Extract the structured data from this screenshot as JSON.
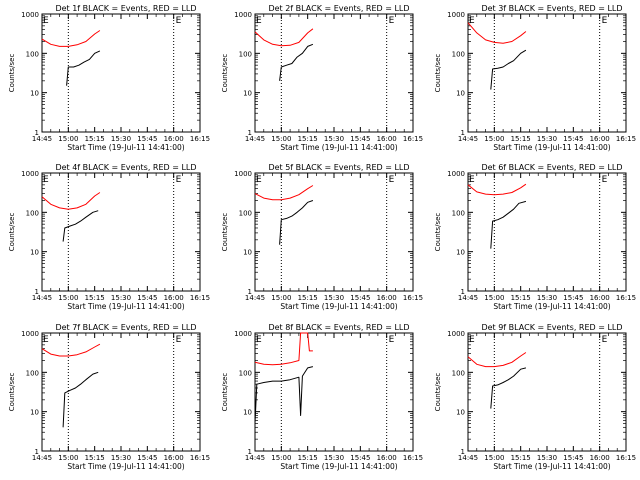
{
  "chart_data": [
    {
      "type": "line",
      "title": "Det 1f BLACK = Events, RED = LLD",
      "xlabel": "Start Time (19-Jul-11 14:41:00)",
      "ylabel": "Counts/sec",
      "xticks": [
        "14:45",
        "15:00",
        "15:15",
        "15:30",
        "15:45",
        "16:00",
        "16:15"
      ],
      "yticks": [
        "1",
        "10",
        "100",
        "1000"
      ],
      "ylim": [
        1,
        1000
      ],
      "yscale": "log",
      "markers": [
        {
          "x": "15:00",
          "style": "dotted"
        },
        {
          "x": "16:00",
          "style": "dotted"
        },
        {
          "x": "16:00",
          "label": "E"
        },
        {
          "x": "14:45",
          "label": "E"
        }
      ],
      "series": [
        {
          "name": "Events",
          "color": "#000000",
          "x": [
            "14:59",
            "15:00",
            "15:03",
            "15:06",
            "15:09",
            "15:12",
            "15:15",
            "15:18"
          ],
          "values": [
            15,
            45,
            45,
            50,
            60,
            70,
            100,
            115
          ]
        },
        {
          "name": "LLD",
          "color": "#ff0000",
          "x": [
            "14:45",
            "14:50",
            "14:55",
            "15:00",
            "15:05",
            "15:10",
            "15:15",
            "15:18"
          ],
          "values": [
            230,
            170,
            150,
            150,
            165,
            200,
            310,
            380
          ]
        }
      ]
    },
    {
      "type": "line",
      "title": "Det 2f BLACK = Events, RED = LLD",
      "xlabel": "Start Time (19-Jul-11 14:41:00)",
      "ylabel": "Counts/sec",
      "xticks": [
        "14:45",
        "15:00",
        "15:15",
        "15:30",
        "15:45",
        "16:00",
        "16:15"
      ],
      "yticks": [
        "1",
        "10",
        "100",
        "1000"
      ],
      "ylim": [
        1,
        1000
      ],
      "yscale": "log",
      "markers": [
        {
          "x": "15:00",
          "style": "dotted"
        },
        {
          "x": "16:00",
          "style": "dotted"
        },
        {
          "x": "16:00",
          "label": "E"
        },
        {
          "x": "14:45",
          "label": "E"
        }
      ],
      "series": [
        {
          "name": "Events",
          "color": "#000000",
          "x": [
            "14:59",
            "15:00",
            "15:03",
            "15:06",
            "15:09",
            "15:12",
            "15:15",
            "15:18"
          ],
          "values": [
            20,
            45,
            50,
            55,
            80,
            100,
            150,
            170
          ]
        },
        {
          "name": "LLD",
          "color": "#ff0000",
          "x": [
            "14:45",
            "14:50",
            "14:55",
            "15:00",
            "15:05",
            "15:10",
            "15:15",
            "15:18"
          ],
          "values": [
            350,
            220,
            170,
            155,
            160,
            190,
            330,
            420
          ]
        }
      ]
    },
    {
      "type": "line",
      "title": "Det 3f BLACK = Events, RED = LLD",
      "xlabel": "Start Time (19-Jul-11 14:41:00)",
      "ylabel": "Counts/sec",
      "xticks": [
        "14:45",
        "15:00",
        "15:15",
        "15:30",
        "15:45",
        "16:00",
        "16:15"
      ],
      "yticks": [
        "1",
        "10",
        "100",
        "1000"
      ],
      "ylim": [
        1,
        1000
      ],
      "yscale": "log",
      "markers": [
        {
          "x": "15:00",
          "style": "dotted"
        },
        {
          "x": "16:00",
          "style": "dotted"
        },
        {
          "x": "16:00",
          "label": "E"
        },
        {
          "x": "14:45",
          "label": "E"
        }
      ],
      "series": [
        {
          "name": "Events",
          "color": "#000000",
          "x": [
            "14:58",
            "14:59",
            "15:02",
            "15:05",
            "15:08",
            "15:11",
            "15:15",
            "15:18"
          ],
          "values": [
            12,
            40,
            42,
            45,
            55,
            65,
            100,
            120
          ]
        },
        {
          "name": "LLD",
          "color": "#ff0000",
          "x": [
            "14:45",
            "14:50",
            "14:55",
            "15:00",
            "15:05",
            "15:10",
            "15:15",
            "15:18"
          ],
          "values": [
            600,
            330,
            220,
            190,
            180,
            200,
            280,
            360
          ]
        }
      ]
    },
    {
      "type": "line",
      "title": "Det 4f BLACK = Events, RED = LLD",
      "xlabel": "Start Time (19-Jul-11 14:41:00)",
      "ylabel": "Counts/sec",
      "xticks": [
        "14:45",
        "15:00",
        "15:15",
        "15:30",
        "15:45",
        "16:00",
        "16:15"
      ],
      "yticks": [
        "1",
        "10",
        "100",
        "1000"
      ],
      "ylim": [
        1,
        1000
      ],
      "yscale": "log",
      "markers": [
        {
          "x": "15:00",
          "style": "dotted"
        },
        {
          "x": "16:00",
          "style": "dotted"
        },
        {
          "x": "16:00",
          "label": "E"
        },
        {
          "x": "14:45",
          "label": "E"
        }
      ],
      "series": [
        {
          "name": "Events",
          "color": "#000000",
          "x": [
            "14:57",
            "14:58",
            "15:01",
            "15:04",
            "15:07",
            "15:10",
            "15:14",
            "15:17"
          ],
          "values": [
            18,
            40,
            45,
            50,
            60,
            75,
            100,
            110
          ]
        },
        {
          "name": "LLD",
          "color": "#ff0000",
          "x": [
            "14:45",
            "14:50",
            "14:55",
            "15:00",
            "15:05",
            "15:10",
            "15:15",
            "15:18"
          ],
          "values": [
            250,
            160,
            130,
            120,
            130,
            160,
            260,
            320
          ]
        }
      ]
    },
    {
      "type": "line",
      "title": "Det 5f BLACK = Events, RED = LLD",
      "xlabel": "Start Time (19-Jul-11 14:41:00)",
      "ylabel": "Counts/sec",
      "xticks": [
        "14:45",
        "15:00",
        "15:15",
        "15:30",
        "15:45",
        "16:00",
        "16:15"
      ],
      "yticks": [
        "1",
        "10",
        "100",
        "1000"
      ],
      "ylim": [
        1,
        1000
      ],
      "yscale": "log",
      "markers": [
        {
          "x": "15:00",
          "style": "dotted"
        },
        {
          "x": "16:00",
          "style": "dotted"
        },
        {
          "x": "16:00",
          "label": "E"
        },
        {
          "x": "14:45",
          "label": "E"
        }
      ],
      "series": [
        {
          "name": "Events",
          "color": "#000000",
          "x": [
            "14:59",
            "15:00",
            "15:03",
            "15:06",
            "15:09",
            "15:12",
            "15:15",
            "15:18"
          ],
          "values": [
            15,
            65,
            70,
            80,
            100,
            130,
            180,
            200
          ]
        },
        {
          "name": "LLD",
          "color": "#ff0000",
          "x": [
            "14:45",
            "14:50",
            "14:55",
            "15:00",
            "15:05",
            "15:10",
            "15:15",
            "15:18"
          ],
          "values": [
            300,
            230,
            210,
            210,
            230,
            280,
            400,
            480
          ]
        }
      ]
    },
    {
      "type": "line",
      "title": "Det 6f BLACK = Events, RED = LLD",
      "xlabel": "Start Time (19-Jul-11 14:41:00)",
      "ylabel": "Counts/sec",
      "xticks": [
        "14:45",
        "15:00",
        "15:15",
        "15:30",
        "15:45",
        "16:00",
        "16:15"
      ],
      "yticks": [
        "1",
        "10",
        "100",
        "1000"
      ],
      "ylim": [
        1,
        1000
      ],
      "yscale": "log",
      "markers": [
        {
          "x": "15:00",
          "style": "dotted"
        },
        {
          "x": "16:00",
          "style": "dotted"
        },
        {
          "x": "16:00",
          "label": "E"
        },
        {
          "x": "14:45",
          "label": "E"
        }
      ],
      "series": [
        {
          "name": "Events",
          "color": "#000000",
          "x": [
            "14:58",
            "14:59",
            "15:02",
            "15:05",
            "15:08",
            "15:11",
            "15:14",
            "15:18"
          ],
          "values": [
            12,
            60,
            65,
            75,
            95,
            120,
            170,
            190
          ]
        },
        {
          "name": "LLD",
          "color": "#ff0000",
          "x": [
            "14:45",
            "14:50",
            "14:55",
            "15:00",
            "15:05",
            "15:10",
            "15:15",
            "15:18"
          ],
          "values": [
            500,
            330,
            290,
            280,
            290,
            320,
            420,
            520
          ]
        }
      ]
    },
    {
      "type": "line",
      "title": "Det 7f BLACK = Events, RED = LLD",
      "xlabel": "Start Time (19-Jul-11 14:41:00)",
      "ylabel": "Counts/sec",
      "xticks": [
        "14:45",
        "15:00",
        "15:15",
        "15:30",
        "15:45",
        "16:00",
        "16:15"
      ],
      "yticks": [
        "1",
        "10",
        "100",
        "1000"
      ],
      "ylim": [
        1,
        1000
      ],
      "yscale": "log",
      "markers": [
        {
          "x": "15:00",
          "style": "dotted"
        },
        {
          "x": "16:00",
          "style": "dotted"
        },
        {
          "x": "16:00",
          "label": "E"
        },
        {
          "x": "14:45",
          "label": "E"
        }
      ],
      "series": [
        {
          "name": "Events",
          "color": "#000000",
          "x": [
            "14:57",
            "14:58",
            "15:01",
            "15:04",
            "15:07",
            "15:10",
            "15:14",
            "15:17"
          ],
          "values": [
            4,
            30,
            35,
            40,
            50,
            65,
            90,
            100
          ]
        },
        {
          "name": "LLD",
          "color": "#ff0000",
          "x": [
            "14:45",
            "14:50",
            "14:55",
            "15:00",
            "15:05",
            "15:10",
            "15:15",
            "15:18"
          ],
          "values": [
            400,
            290,
            260,
            260,
            280,
            330,
            440,
            520
          ]
        }
      ]
    },
    {
      "type": "line",
      "title": "Det 8f BLACK = Events, RED = LLD",
      "xlabel": "Start Time (19-Jul-11 14:41:00)",
      "ylabel": "Counts/sec",
      "xticks": [
        "14:45",
        "15:00",
        "15:15",
        "15:30",
        "15:45",
        "16:00",
        "16:15"
      ],
      "yticks": [
        "1",
        "10",
        "100",
        "1000"
      ],
      "ylim": [
        1,
        1000
      ],
      "yscale": "log",
      "markers": [
        {
          "x": "15:00",
          "style": "dotted"
        },
        {
          "x": "16:00",
          "style": "dotted"
        },
        {
          "x": "16:00",
          "label": "E"
        },
        {
          "x": "14:45",
          "label": "E"
        }
      ],
      "series": [
        {
          "name": "Events",
          "color": "#000000",
          "x": [
            "14:45",
            "14:46",
            "14:50",
            "14:55",
            "15:00",
            "15:05",
            "15:10",
            "15:11",
            "15:12",
            "15:15",
            "15:18"
          ],
          "values": [
            5,
            50,
            55,
            60,
            60,
            65,
            75,
            8,
            80,
            130,
            140
          ]
        },
        {
          "name": "LLD",
          "color": "#ff0000",
          "x": [
            "14:45",
            "14:50",
            "14:55",
            "15:00",
            "15:05",
            "15:10",
            "15:11",
            "15:12",
            "15:15",
            "15:16",
            "15:18"
          ],
          "values": [
            180,
            160,
            155,
            160,
            175,
            200,
            1000,
            1000,
            1000,
            350,
            350
          ]
        }
      ]
    },
    {
      "type": "line",
      "title": "Det 9f BLACK = Events, RED = LLD",
      "xlabel": "Start Time (19-Jul-11 14:41:00)",
      "ylabel": "Counts/sec",
      "xticks": [
        "14:45",
        "15:00",
        "15:15",
        "15:30",
        "15:45",
        "16:00",
        "16:15"
      ],
      "yticks": [
        "1",
        "10",
        "100",
        "1000"
      ],
      "ylim": [
        1,
        1000
      ],
      "yscale": "log",
      "markers": [
        {
          "x": "15:00",
          "style": "dotted"
        },
        {
          "x": "16:00",
          "style": "dotted"
        },
        {
          "x": "16:00",
          "label": "E"
        },
        {
          "x": "14:45",
          "label": "E"
        }
      ],
      "series": [
        {
          "name": "Events",
          "color": "#000000",
          "x": [
            "14:58",
            "14:59",
            "15:02",
            "15:05",
            "15:08",
            "15:11",
            "15:15",
            "15:18"
          ],
          "values": [
            12,
            45,
            48,
            55,
            65,
            80,
            120,
            130
          ]
        },
        {
          "name": "LLD",
          "color": "#ff0000",
          "x": [
            "14:45",
            "14:50",
            "14:55",
            "15:00",
            "15:05",
            "15:10",
            "15:15",
            "15:18"
          ],
          "values": [
            250,
            160,
            140,
            140,
            150,
            180,
            260,
            320
          ]
        }
      ]
    }
  ]
}
